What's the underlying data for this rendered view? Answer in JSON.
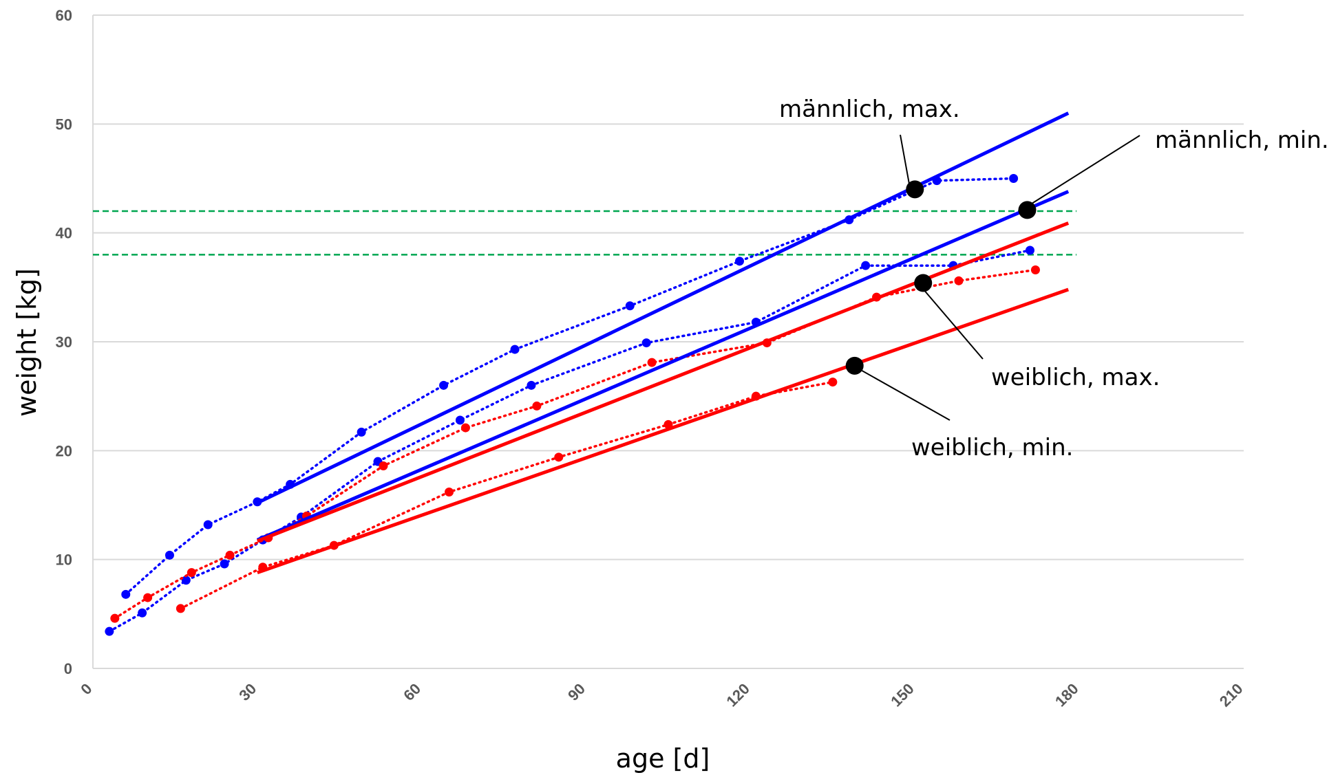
{
  "chart_data": {
    "type": "line",
    "xlabel": "age [d]",
    "ylabel": "weight [kg]",
    "xlim": [
      0,
      210
    ],
    "ylim": [
      0,
      60
    ],
    "x_ticks": [
      "0",
      "30",
      "60",
      "90",
      "120",
      "150",
      "180",
      "210"
    ],
    "y_ticks": [
      "0",
      "10",
      "20",
      "30",
      "40",
      "50",
      "60"
    ],
    "x_tick_values": [
      0,
      30,
      60,
      90,
      120,
      150,
      180,
      210
    ],
    "y_tick_values": [
      0,
      10,
      20,
      30,
      40,
      50,
      60
    ],
    "grid": "horizontal",
    "reference_lines": [
      {
        "y": 42,
        "color": "#00a650",
        "style": "dashed"
      },
      {
        "y": 38,
        "color": "#00a650",
        "style": "dashed"
      }
    ],
    "series": [
      {
        "kind": "dotted",
        "color": "#0000ff",
        "points": [
          [
            6,
            6.8
          ],
          [
            14,
            10.4
          ],
          [
            21,
            13.2
          ],
          [
            30,
            15.3
          ],
          [
            36,
            16.9
          ],
          [
            49,
            21.7
          ],
          [
            64,
            26.0
          ],
          [
            77,
            29.3
          ],
          [
            98,
            33.3
          ],
          [
            118,
            37.4
          ],
          [
            138,
            41.2
          ],
          [
            154,
            44.8
          ],
          [
            168,
            45.0
          ]
        ]
      },
      {
        "kind": "dotted",
        "color": "#0000ff",
        "points": [
          [
            3,
            3.4
          ],
          [
            9,
            5.1
          ],
          [
            17,
            8.1
          ],
          [
            24,
            9.6
          ],
          [
            31,
            11.8
          ],
          [
            38,
            13.9
          ],
          [
            52,
            19.0
          ],
          [
            67,
            22.8
          ],
          [
            80,
            26.0
          ],
          [
            101,
            29.9
          ],
          [
            121,
            31.8
          ],
          [
            141,
            37.0
          ],
          [
            157,
            37.0
          ],
          [
            171,
            38.4
          ]
        ]
      },
      {
        "kind": "dotted",
        "color": "#ff0000",
        "points": [
          [
            4,
            4.6
          ],
          [
            10,
            6.5
          ],
          [
            18,
            8.8
          ],
          [
            25,
            10.4
          ],
          [
            32,
            12.0
          ],
          [
            39,
            14.0
          ],
          [
            53,
            18.6
          ],
          [
            68,
            22.1
          ],
          [
            81,
            24.1
          ],
          [
            102,
            28.1
          ],
          [
            123,
            29.9
          ],
          [
            143,
            34.1
          ],
          [
            158,
            35.6
          ],
          [
            172,
            36.6
          ]
        ]
      },
      {
        "kind": "dotted",
        "color": "#ff0000",
        "points": [
          [
            16,
            5.5
          ],
          [
            31,
            9.3
          ],
          [
            44,
            11.3
          ],
          [
            65,
            16.2
          ],
          [
            85,
            19.4
          ],
          [
            105,
            22.4
          ],
          [
            121,
            25.0
          ],
          [
            135,
            26.3
          ]
        ]
      },
      {
        "kind": "solid",
        "color": "#0000ff",
        "points": [
          [
            30,
            15.2
          ],
          [
            178,
            51.0
          ]
        ]
      },
      {
        "kind": "solid",
        "color": "#0000ff",
        "points": [
          [
            30,
            11.8
          ],
          [
            178,
            43.8
          ]
        ]
      },
      {
        "kind": "solid",
        "color": "#ff0000",
        "points": [
          [
            30,
            11.7
          ],
          [
            178,
            40.9
          ]
        ]
      },
      {
        "kind": "solid",
        "color": "#ff0000",
        "points": [
          [
            30,
            8.8
          ],
          [
            178,
            34.8
          ]
        ]
      }
    ],
    "markers": [
      {
        "x": 150,
        "y": 44.0
      },
      {
        "x": 170.5,
        "y": 42.1
      },
      {
        "x": 151.5,
        "y": 35.4
      },
      {
        "x": 139,
        "y": 27.8
      }
    ],
    "annotations": [
      {
        "text": "männlich, max.",
        "x": 150,
        "y": 44.0
      },
      {
        "text": "männlich, min.",
        "x": 170.5,
        "y": 42.1
      },
      {
        "text": "weiblich, max.",
        "x": 151.5,
        "y": 35.4
      },
      {
        "text": "weiblich, min.",
        "x": 139,
        "y": 27.8
      }
    ]
  }
}
